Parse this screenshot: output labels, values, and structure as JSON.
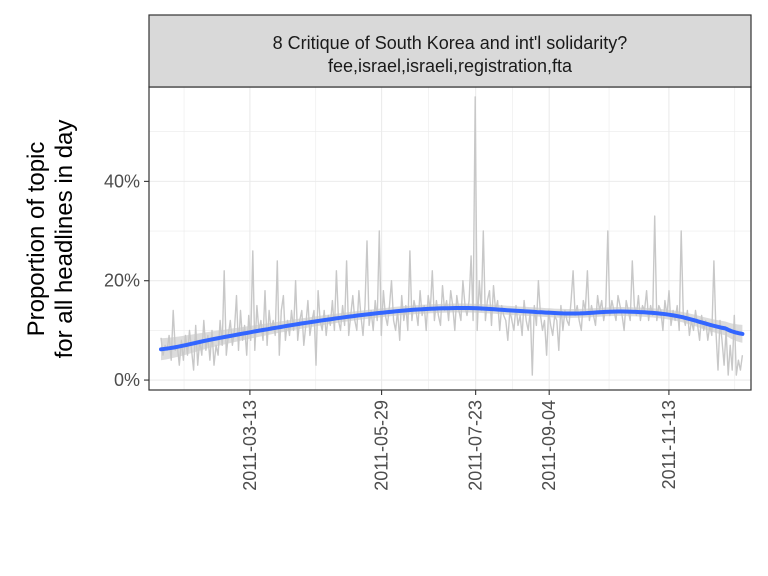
{
  "chart_data": {
    "type": "line",
    "strip": {
      "line1": "8 Critique of South Korea and int'l solidarity?",
      "line2": "fee,israel,israeli,registration,fta"
    },
    "ylabel_line1": "Proportion of topic",
    "ylabel_line2": "for all headlines in day",
    "xlabel": "",
    "x_range": [
      "2011-01-13",
      "2011-12-31"
    ],
    "ylim": [
      -0.02,
      0.59
    ],
    "y_ticks": [
      {
        "value": 0.0,
        "label": "0%"
      },
      {
        "value": 0.2,
        "label": "20%"
      },
      {
        "value": 0.4,
        "label": "40%"
      }
    ],
    "x_ticks": [
      {
        "value": "2011-03-13",
        "label": "2011-03-13"
      },
      {
        "value": "2011-05-29",
        "label": "2011-05-29"
      },
      {
        "value": "2011-07-23",
        "label": "2011-07-23"
      },
      {
        "value": "2011-09-04",
        "label": "2011-09-04"
      },
      {
        "value": "2011-11-13",
        "label": "2011-11-13"
      }
    ],
    "grid": true,
    "colors": {
      "raw": "#c8c8c8",
      "smooth": "#3366ff",
      "ribbon": "#c4c4c4",
      "strip_fill": "#d9d9d9",
      "grid": "#ebebeb",
      "border": "#333333"
    },
    "raw_series": {
      "start": "2011-01-20",
      "end": "2011-12-26",
      "values": [
        0.085,
        0.05,
        0.07,
        0.06,
        0.09,
        0.04,
        0.14,
        0.06,
        0.07,
        0.03,
        0.08,
        0.04,
        0.09,
        0.05,
        0.1,
        0.06,
        0.02,
        0.11,
        0.03,
        0.08,
        0.05,
        0.12,
        0.06,
        0.09,
        0.04,
        0.1,
        0.03,
        0.07,
        0.05,
        0.12,
        0.07,
        0.22,
        0.05,
        0.09,
        0.12,
        0.07,
        0.1,
        0.17,
        0.06,
        0.14,
        0.08,
        0.11,
        0.05,
        0.13,
        0.08,
        0.26,
        0.06,
        0.15,
        0.1,
        0.12,
        0.08,
        0.18,
        0.07,
        0.14,
        0.1,
        0.12,
        0.09,
        0.24,
        0.05,
        0.14,
        0.17,
        0.08,
        0.12,
        0.09,
        0.14,
        0.1,
        0.2,
        0.08,
        0.12,
        0.14,
        0.07,
        0.11,
        0.16,
        0.09,
        0.12,
        0.14,
        0.03,
        0.18,
        0.12,
        0.1,
        0.14,
        0.09,
        0.13,
        0.11,
        0.16,
        0.1,
        0.22,
        0.12,
        0.1,
        0.15,
        0.11,
        0.24,
        0.09,
        0.13,
        0.17,
        0.12,
        0.1,
        0.18,
        0.13,
        0.09,
        0.15,
        0.28,
        0.11,
        0.14,
        0.1,
        0.16,
        0.12,
        0.3,
        0.09,
        0.18,
        0.13,
        0.11,
        0.15,
        0.2,
        0.12,
        0.1,
        0.14,
        0.08,
        0.17,
        0.12,
        0.15,
        0.1,
        0.26,
        0.12,
        0.16,
        0.14,
        0.11,
        0.18,
        0.13,
        0.15,
        0.1,
        0.17,
        0.14,
        0.22,
        0.12,
        0.16,
        0.13,
        0.11,
        0.19,
        0.14,
        0.16,
        0.12,
        0.18,
        0.15,
        0.1,
        0.17,
        0.14,
        0.12,
        0.2,
        0.15,
        0.13,
        0.16,
        0.25,
        0.12,
        0.57,
        0.1,
        0.2,
        0.14,
        0.3,
        0.12,
        0.16,
        0.18,
        0.11,
        0.19,
        0.14,
        0.16,
        0.1,
        0.15,
        0.13,
        0.12,
        0.08,
        0.14,
        0.12,
        0.1,
        0.15,
        0.11,
        0.13,
        0.09,
        0.16,
        0.12,
        0.1,
        0.14,
        0.01,
        0.15,
        0.11,
        0.2,
        0.13,
        0.1,
        0.12,
        0.05,
        0.14,
        0.11,
        0.09,
        0.13,
        0.12,
        0.06,
        0.15,
        0.1,
        0.14,
        0.12,
        0.11,
        0.16,
        0.22,
        0.13,
        0.15,
        0.12,
        0.1,
        0.16,
        0.14,
        0.22,
        0.12,
        0.15,
        0.13,
        0.11,
        0.17,
        0.14,
        0.16,
        0.12,
        0.15,
        0.3,
        0.13,
        0.16,
        0.14,
        0.12,
        0.17,
        0.15,
        0.13,
        0.1,
        0.16,
        0.14,
        0.12,
        0.24,
        0.15,
        0.13,
        0.17,
        0.12,
        0.15,
        0.14,
        0.18,
        0.12,
        0.15,
        0.13,
        0.33,
        0.12,
        0.15,
        0.14,
        0.1,
        0.16,
        0.13,
        0.18,
        0.11,
        0.14,
        0.12,
        0.15,
        0.1,
        0.3,
        0.13,
        0.11,
        0.14,
        0.09,
        0.12,
        0.1,
        0.14,
        0.11,
        0.08,
        0.13,
        0.1,
        0.12,
        0.08,
        0.11,
        0.09,
        0.24,
        0.1,
        0.02,
        0.12,
        0.08,
        0.03,
        0.1,
        0.01,
        0.07,
        0.02,
        0.13,
        0.01,
        0.04,
        0.02,
        0.05
      ]
    },
    "smooth_series": {
      "x": [
        "2011-01-20",
        "2011-02-19",
        "2011-03-21",
        "2011-04-20",
        "2011-05-20",
        "2011-06-19",
        "2011-07-19",
        "2011-08-18",
        "2011-09-17",
        "2011-10-17",
        "2011-11-16",
        "2011-12-16",
        "2011-12-26"
      ],
      "y": [
        0.062,
        0.082,
        0.101,
        0.118,
        0.132,
        0.142,
        0.145,
        0.139,
        0.134,
        0.138,
        0.13,
        0.104,
        0.093
      ],
      "band": [
        0.022,
        0.016,
        0.012,
        0.01,
        0.009,
        0.009,
        0.009,
        0.009,
        0.009,
        0.009,
        0.01,
        0.014,
        0.018
      ]
    }
  }
}
